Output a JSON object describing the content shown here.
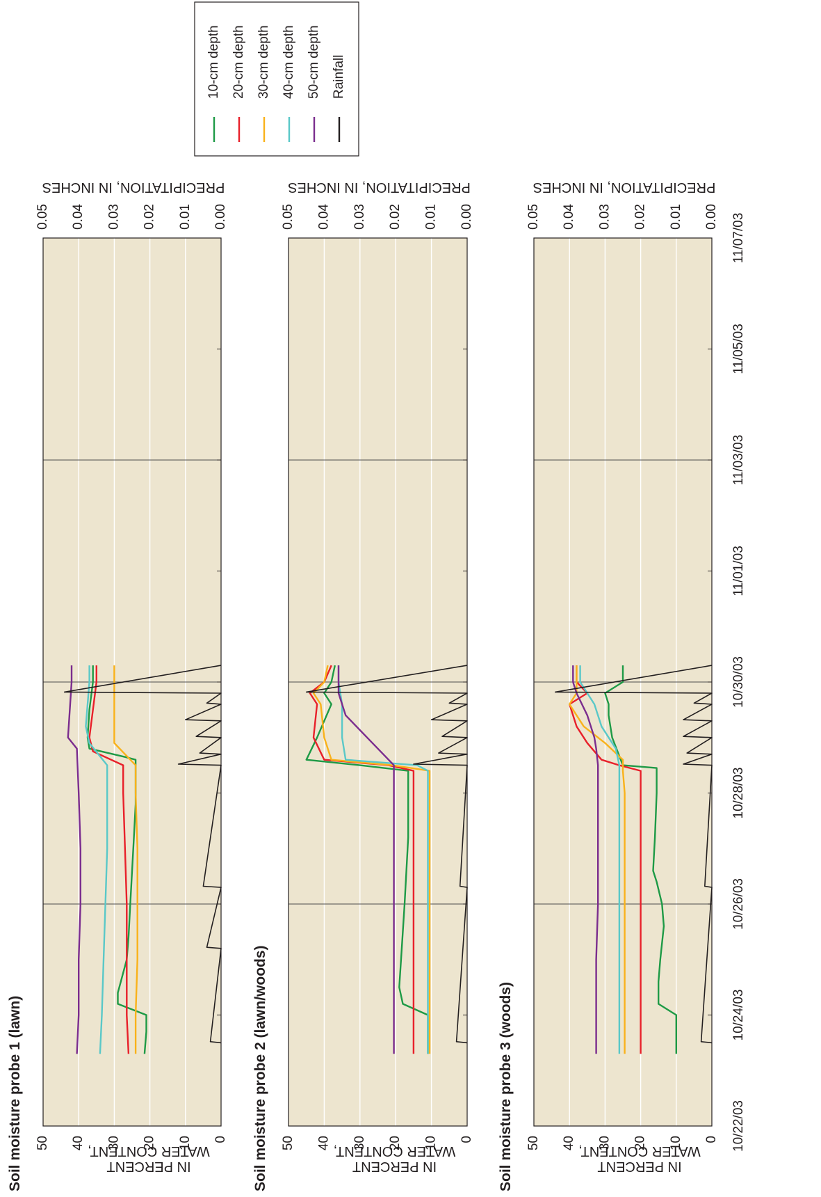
{
  "chart_data": [
    {
      "type": "line",
      "title": "Soil moisture probe 1 (lawn)",
      "ylabel_line1": "WATER CONTENT,",
      "ylabel_line2": "IN PERCENT",
      "y2label": "PRECIPITATION, IN INCHES",
      "ylim": [
        0,
        50
      ],
      "y2lim": [
        0,
        0.05
      ],
      "y_ticks": [
        "0",
        "10",
        "20",
        "30",
        "40",
        "50"
      ],
      "y2_ticks": [
        "0.00",
        "0.01",
        "0.02",
        "0.03",
        "0.04",
        "0.05"
      ],
      "x_ticks": [
        "10/22/03",
        "10/24/03",
        "10/26/03",
        "10/28/03",
        "10/30/03",
        "11/01/03",
        "11/03/03",
        "11/05/03",
        "11/07/03"
      ],
      "xlim": [
        "10/22/03",
        "11/07/03"
      ],
      "series": [
        {
          "name": "10-cm depth",
          "color": "#1e9a46",
          "x": [
            1.3,
            1.7,
            1.72,
            2.0,
            2.2,
            2.4,
            3.0,
            3.4,
            4.0,
            4.6,
            5.2,
            5.8,
            6.3,
            6.6,
            6.65,
            6.8,
            7.0,
            7.5,
            8.0,
            8.3
          ],
          "y": [
            21.5,
            21,
            21,
            21,
            29,
            29,
            26.5,
            26,
            25.5,
            25,
            24.5,
            24,
            24,
            24,
            27,
            37,
            37.5,
            37,
            36,
            36
          ]
        },
        {
          "name": "20-cm depth",
          "color": "#e8202a",
          "x": [
            1.3,
            2.0,
            3.0,
            4.0,
            5.0,
            6.0,
            6.5,
            6.75,
            7.0,
            7.5,
            8.0,
            8.3
          ],
          "y": [
            26,
            26.5,
            26.5,
            26.5,
            27,
            27.5,
            27.5,
            36,
            37,
            36,
            35,
            35
          ]
        },
        {
          "name": "30-cm depth",
          "color": "#f9b21b",
          "x": [
            1.3,
            2.0,
            3.0,
            4.0,
            5.0,
            6.0,
            6.5,
            6.9,
            7.2,
            8.3
          ],
          "y": [
            24,
            24,
            23.5,
            23.5,
            23.5,
            24,
            24,
            30,
            30,
            30
          ]
        },
        {
          "name": "40-cm depth",
          "color": "#5ac8c8",
          "x": [
            1.3,
            2.0,
            3.0,
            4.0,
            5.0,
            6.0,
            6.5,
            6.9,
            7.2,
            8.0,
            8.3
          ],
          "y": [
            34,
            33.5,
            33,
            32.5,
            32,
            32,
            32,
            37,
            38,
            37,
            37
          ]
        },
        {
          "name": "50-cm depth",
          "color": "#7b2d8e",
          "x": [
            1.3,
            2.0,
            3.0,
            4.0,
            5.0,
            6.0,
            6.8,
            7.0,
            8.0,
            8.3
          ],
          "y": [
            40.5,
            40,
            40,
            39.5,
            39.5,
            40,
            40.5,
            43,
            42,
            42
          ]
        },
        {
          "name": "Rainfall",
          "color": "#231f20",
          "axis": "right",
          "x": [
            1.5,
            1.52,
            3.2,
            3.22,
            4.3,
            4.32,
            6.5,
            6.52,
            6.7,
            6.72,
            7.0,
            7.02,
            7.3,
            7.32,
            7.6,
            7.62,
            7.8,
            7.82,
            8.3
          ],
          "y": [
            0,
            0.003,
            0,
            0.004,
            0,
            0.005,
            0,
            0.012,
            0,
            0.006,
            0,
            0.007,
            0,
            0.01,
            0,
            0.004,
            0,
            0.044,
            0
          ]
        }
      ]
    },
    {
      "type": "line",
      "title": "Soil moisture probe 2 (lawn/woods)",
      "ylabel_line1": "WATER CONTENT,",
      "ylabel_line2": "IN PERCENT",
      "y2label": "PRECIPITATION, IN INCHES",
      "ylim": [
        0,
        50
      ],
      "y2lim": [
        0,
        0.05
      ],
      "y_ticks": [
        "0",
        "10",
        "20",
        "30",
        "40",
        "50"
      ],
      "y2_ticks": [
        "0.00",
        "0.01",
        "0.02",
        "0.03",
        "0.04",
        "0.05"
      ],
      "x_ticks": [
        "10/22/03",
        "10/24/03",
        "10/26/03",
        "10/28/03",
        "10/30/03",
        "11/01/03",
        "11/03/03",
        "11/05/03",
        "11/07/03"
      ],
      "xlim": [
        "10/22/03",
        "11/07/03"
      ],
      "series": [
        {
          "name": "10-cm depth",
          "color": "#1e9a46",
          "x": [
            1.3,
            2.0,
            2.2,
            2.5,
            3.0,
            4.0,
            4.6,
            5.2,
            6.0,
            6.4,
            6.5,
            6.6,
            7.0,
            7.6,
            7.8,
            8.0,
            8.3
          ],
          "y": [
            11,
            11,
            18,
            19,
            18.5,
            17.5,
            17,
            16.5,
            16.5,
            16.5,
            30,
            45,
            42,
            38,
            40,
            38,
            37
          ]
        },
        {
          "name": "20-cm depth",
          "color": "#e8202a",
          "x": [
            1.3,
            2.0,
            3.0,
            4.0,
            5.0,
            6.0,
            6.4,
            6.5,
            6.6,
            7.0,
            7.6,
            7.8,
            8.0,
            8.3
          ],
          "y": [
            15,
            15,
            15,
            15,
            15,
            15,
            15,
            22,
            40,
            43,
            42,
            44,
            40,
            38
          ]
        },
        {
          "name": "30-cm depth",
          "color": "#f9b21b",
          "x": [
            1.3,
            2.0,
            3.0,
            4.0,
            5.0,
            6.0,
            6.4,
            6.5,
            6.6,
            7.0,
            7.6,
            7.8,
            8.0,
            8.3
          ],
          "y": [
            10.5,
            10.5,
            10.5,
            10.5,
            10.5,
            10.5,
            10.5,
            21,
            38,
            40,
            41,
            43,
            40,
            39
          ]
        },
        {
          "name": "40-cm depth",
          "color": "#5ac8c8",
          "x": [
            1.3,
            2.0,
            3.0,
            4.0,
            5.0,
            6.0,
            6.4,
            6.5,
            6.6,
            7.0,
            7.6,
            8.0,
            8.3
          ],
          "y": [
            11,
            11,
            11,
            11,
            11,
            11,
            11,
            14,
            34,
            35,
            35,
            36,
            36
          ]
        },
        {
          "name": "50-cm depth",
          "color": "#7b2d8e",
          "x": [
            1.3,
            2.0,
            3.0,
            4.0,
            5.0,
            6.0,
            6.4,
            6.5,
            7.0,
            7.4,
            7.8,
            8.3
          ],
          "y": [
            20.5,
            20.5,
            20.5,
            20.5,
            20.5,
            20.5,
            20.5,
            20.5,
            28,
            34,
            36,
            36
          ]
        },
        {
          "name": "Rainfall",
          "color": "#231f20",
          "axis": "right",
          "x": [
            1.5,
            1.52,
            4.3,
            4.32,
            6.5,
            6.52,
            6.7,
            6.72,
            7.0,
            7.02,
            7.3,
            7.32,
            7.6,
            7.62,
            7.8,
            7.82,
            8.3
          ],
          "y": [
            0,
            0.003,
            0,
            0.002,
            0,
            0.015,
            0,
            0.008,
            0,
            0.007,
            0,
            0.01,
            0,
            0.005,
            0,
            0.045,
            0
          ]
        }
      ]
    },
    {
      "type": "line",
      "title": "Soil moisture probe 3 (woods)",
      "ylabel_line1": "WATER CONTENT,",
      "ylabel_line2": "IN PERCENT",
      "y2label": "PRECIPITATION, IN INCHES",
      "ylim": [
        0,
        50
      ],
      "y2lim": [
        0,
        0.05
      ],
      "y_ticks": [
        "0",
        "10",
        "20",
        "30",
        "40",
        "50"
      ],
      "y2_ticks": [
        "0.00",
        "0.01",
        "0.02",
        "0.03",
        "0.04",
        "0.05"
      ],
      "x_ticks": [
        "10/22/03",
        "10/24/03",
        "10/26/03",
        "10/28/03",
        "10/30/03",
        "11/01/03",
        "11/03/03",
        "11/05/03",
        "11/07/03"
      ],
      "xlim": [
        "10/22/03",
        "11/07/03"
      ],
      "series": [
        {
          "name": "10-cm depth",
          "color": "#1e9a46",
          "x": [
            1.3,
            1.7,
            1.72,
            2.0,
            2.2,
            2.6,
            3.0,
            3.6,
            4.0,
            4.4,
            4.6,
            5.2,
            6.0,
            6.45,
            6.5,
            7.0,
            7.4,
            7.6,
            7.8,
            8.0,
            8.3
          ],
          "y": [
            10,
            10,
            10,
            10,
            15,
            15,
            14.5,
            13.5,
            14,
            15.5,
            16.5,
            16,
            15.5,
            15.5,
            25,
            28,
            29,
            29,
            30,
            25,
            25
          ]
        },
        {
          "name": "20-cm depth",
          "color": "#e8202a",
          "x": [
            1.3,
            2.0,
            3.0,
            4.0,
            5.0,
            6.0,
            6.4,
            6.5,
            6.6,
            6.9,
            7.2,
            7.6,
            7.8,
            8.0,
            8.3
          ],
          "y": [
            20,
            20,
            20,
            20,
            20,
            20,
            20,
            26,
            31,
            35,
            38,
            40,
            35,
            38,
            38
          ]
        },
        {
          "name": "30-cm depth",
          "color": "#f9b21b",
          "x": [
            1.3,
            2.0,
            3.0,
            4.0,
            5.0,
            6.0,
            6.4,
            6.6,
            6.9,
            7.2,
            7.6,
            7.8,
            8.0,
            8.3
          ],
          "y": [
            24.5,
            24.5,
            24.5,
            24.5,
            24.5,
            24.5,
            25,
            25,
            30,
            36,
            40,
            38,
            38,
            38
          ]
        },
        {
          "name": "40-cm depth",
          "color": "#5ac8c8",
          "x": [
            1.3,
            2.0,
            3.0,
            4.0,
            5.0,
            6.0,
            6.5,
            6.8,
            7.2,
            7.6,
            7.8,
            8.0,
            8.3
          ],
          "y": [
            26,
            26,
            26,
            26,
            26,
            26,
            26,
            27,
            31,
            33,
            35,
            37,
            37
          ]
        },
        {
          "name": "50-cm depth",
          "color": "#7b2d8e",
          "x": [
            1.3,
            2.0,
            3.0,
            4.0,
            5.0,
            6.0,
            6.5,
            6.8,
            7.0,
            7.4,
            7.8,
            8.0,
            8.3
          ],
          "y": [
            32.5,
            32.5,
            32.5,
            32,
            32,
            32,
            32,
            32.5,
            33,
            35,
            38,
            39,
            39
          ]
        },
        {
          "name": "Rainfall",
          "color": "#231f20",
          "axis": "right",
          "x": [
            1.5,
            1.52,
            4.3,
            4.32,
            6.5,
            6.52,
            6.7,
            6.72,
            7.0,
            7.02,
            7.3,
            7.32,
            7.6,
            7.62,
            7.8,
            7.82,
            8.3
          ],
          "y": [
            0,
            0.003,
            0,
            0.002,
            0,
            0.008,
            0,
            0.007,
            0,
            0.008,
            0,
            0.008,
            0,
            0.005,
            0,
            0.044,
            0
          ]
        }
      ]
    }
  ],
  "legend": {
    "items": [
      {
        "label": "10-cm depth",
        "color": "#1e9a46"
      },
      {
        "label": "20-cm depth",
        "color": "#e8202a"
      },
      {
        "label": "30-cm depth",
        "color": "#f9b21b"
      },
      {
        "label": "40-cm depth",
        "color": "#5ac8c8"
      },
      {
        "label": "50-cm depth",
        "color": "#7b2d8e"
      },
      {
        "label": "Rainfall",
        "color": "#231f20"
      }
    ]
  },
  "colors": {
    "plot_background": "#ede5cf",
    "grid": "#ffffff",
    "frame": "#231f20"
  }
}
